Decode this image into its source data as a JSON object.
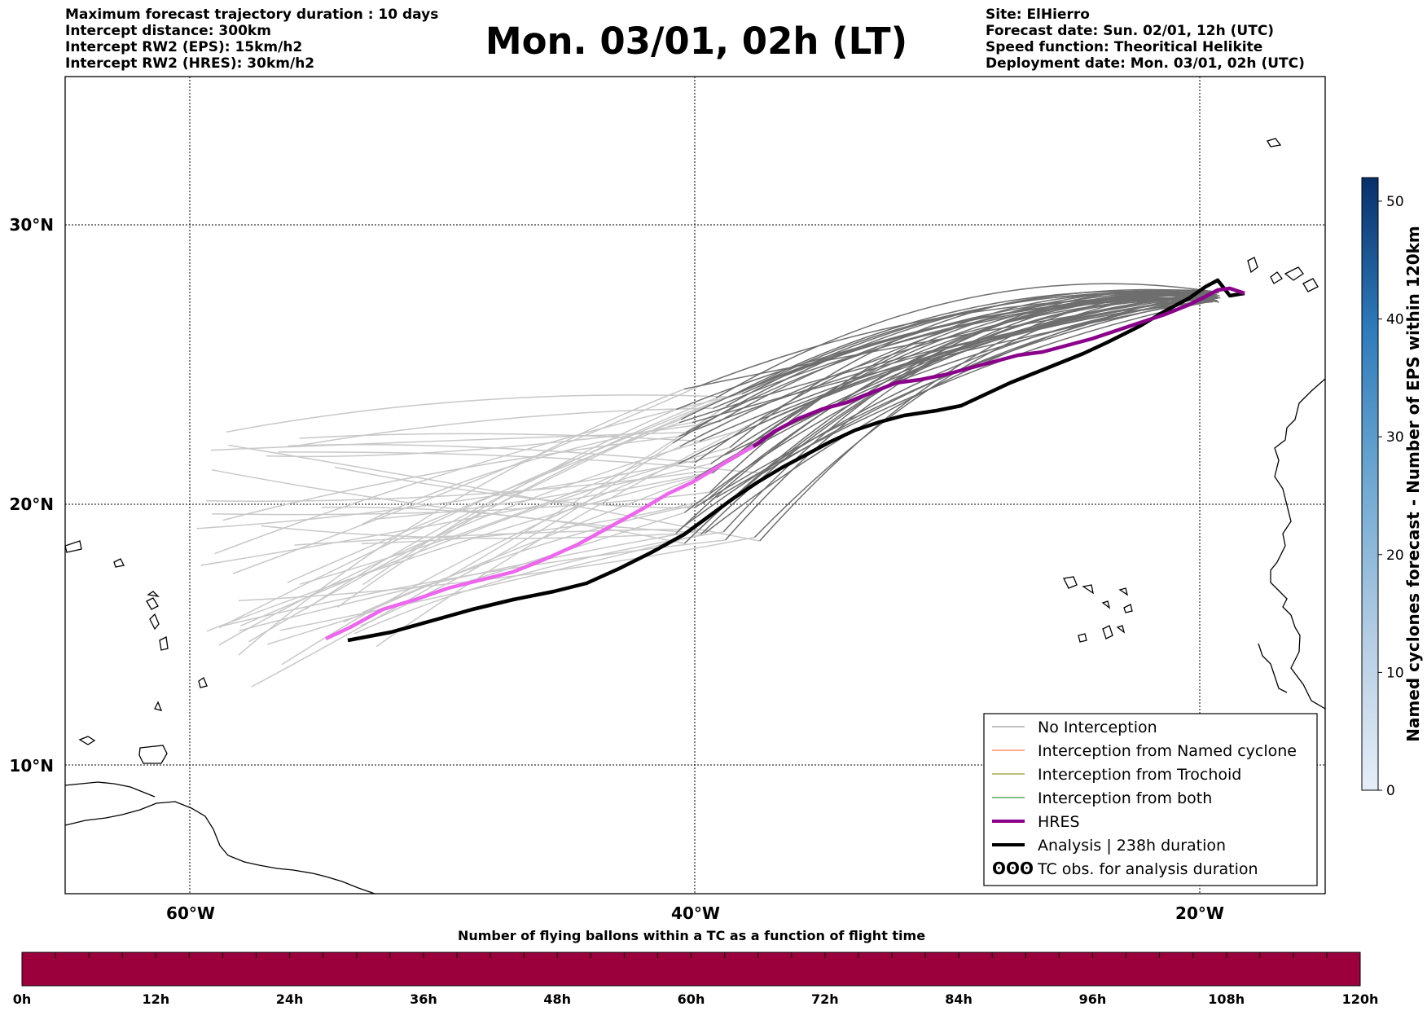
{
  "header": {
    "left_lines": [
      "Maximum forecast trajectory duration : 10 days",
      "Intercept distance: 300km",
      "Intercept RW2 (EPS):  15km/h2",
      "Intercept RW2 (HRES): 30km/h2"
    ],
    "title": "Mon. 03/01, 02h (LT)",
    "right_lines": [
      "Site: ElHierro",
      "Forecast date: Sun. 02/01, 12h (UTC)",
      "Speed function: Theoritical Helikite",
      "Deployment date: Mon. 03/01, 02h (UTC)"
    ]
  },
  "map": {
    "lat_labels": [
      "30°N",
      "20°N",
      "10°N"
    ],
    "lon_labels": [
      "60°W",
      "40°W",
      "20°W"
    ],
    "colors": {
      "eps_late": "#6e6e6e",
      "eps_early": "#c8c8c8",
      "hres_early": "#ee66ee",
      "hres_late": "#8b008b",
      "analysis": "#000000",
      "named_cyclone": "#ff5a14",
      "trochoid": "#808000",
      "both": "#008000",
      "balloon_bar": "#9b003c"
    }
  },
  "legend": {
    "items": [
      {
        "label": "No Interception",
        "symbol": "line",
        "color": "#808080",
        "width": 1
      },
      {
        "label": "Interception from Named cyclone",
        "symbol": "line",
        "color": "#ff5a14",
        "width": 1
      },
      {
        "label": "Interception from Trochoid",
        "symbol": "line",
        "color": "#808000",
        "width": 1
      },
      {
        "label": "Interception from both",
        "symbol": "line",
        "color": "#008000",
        "width": 1
      },
      {
        "label": "HRES",
        "symbol": "line",
        "color": "#8b008b",
        "width": 4
      },
      {
        "label": "Analysis | 238h duration",
        "symbol": "line",
        "color": "#000000",
        "width": 4
      },
      {
        "label": "TC obs. for analysis duration",
        "symbol": "cyclone",
        "color": "#000000",
        "width": 1
      }
    ]
  },
  "colorbar_right": {
    "label": "Named cyclones forecast - Number of EPS within 120km",
    "ticks": [
      "0",
      "10",
      "20",
      "30",
      "40",
      "50"
    ],
    "max": 52
  },
  "colorbar_bottom": {
    "title": "Number of flying ballons within a TC as a function of flight time",
    "ticks": [
      "0h",
      "12h",
      "24h",
      "36h",
      "48h",
      "60h",
      "72h",
      "84h",
      "96h",
      "108h",
      "120h"
    ]
  }
}
